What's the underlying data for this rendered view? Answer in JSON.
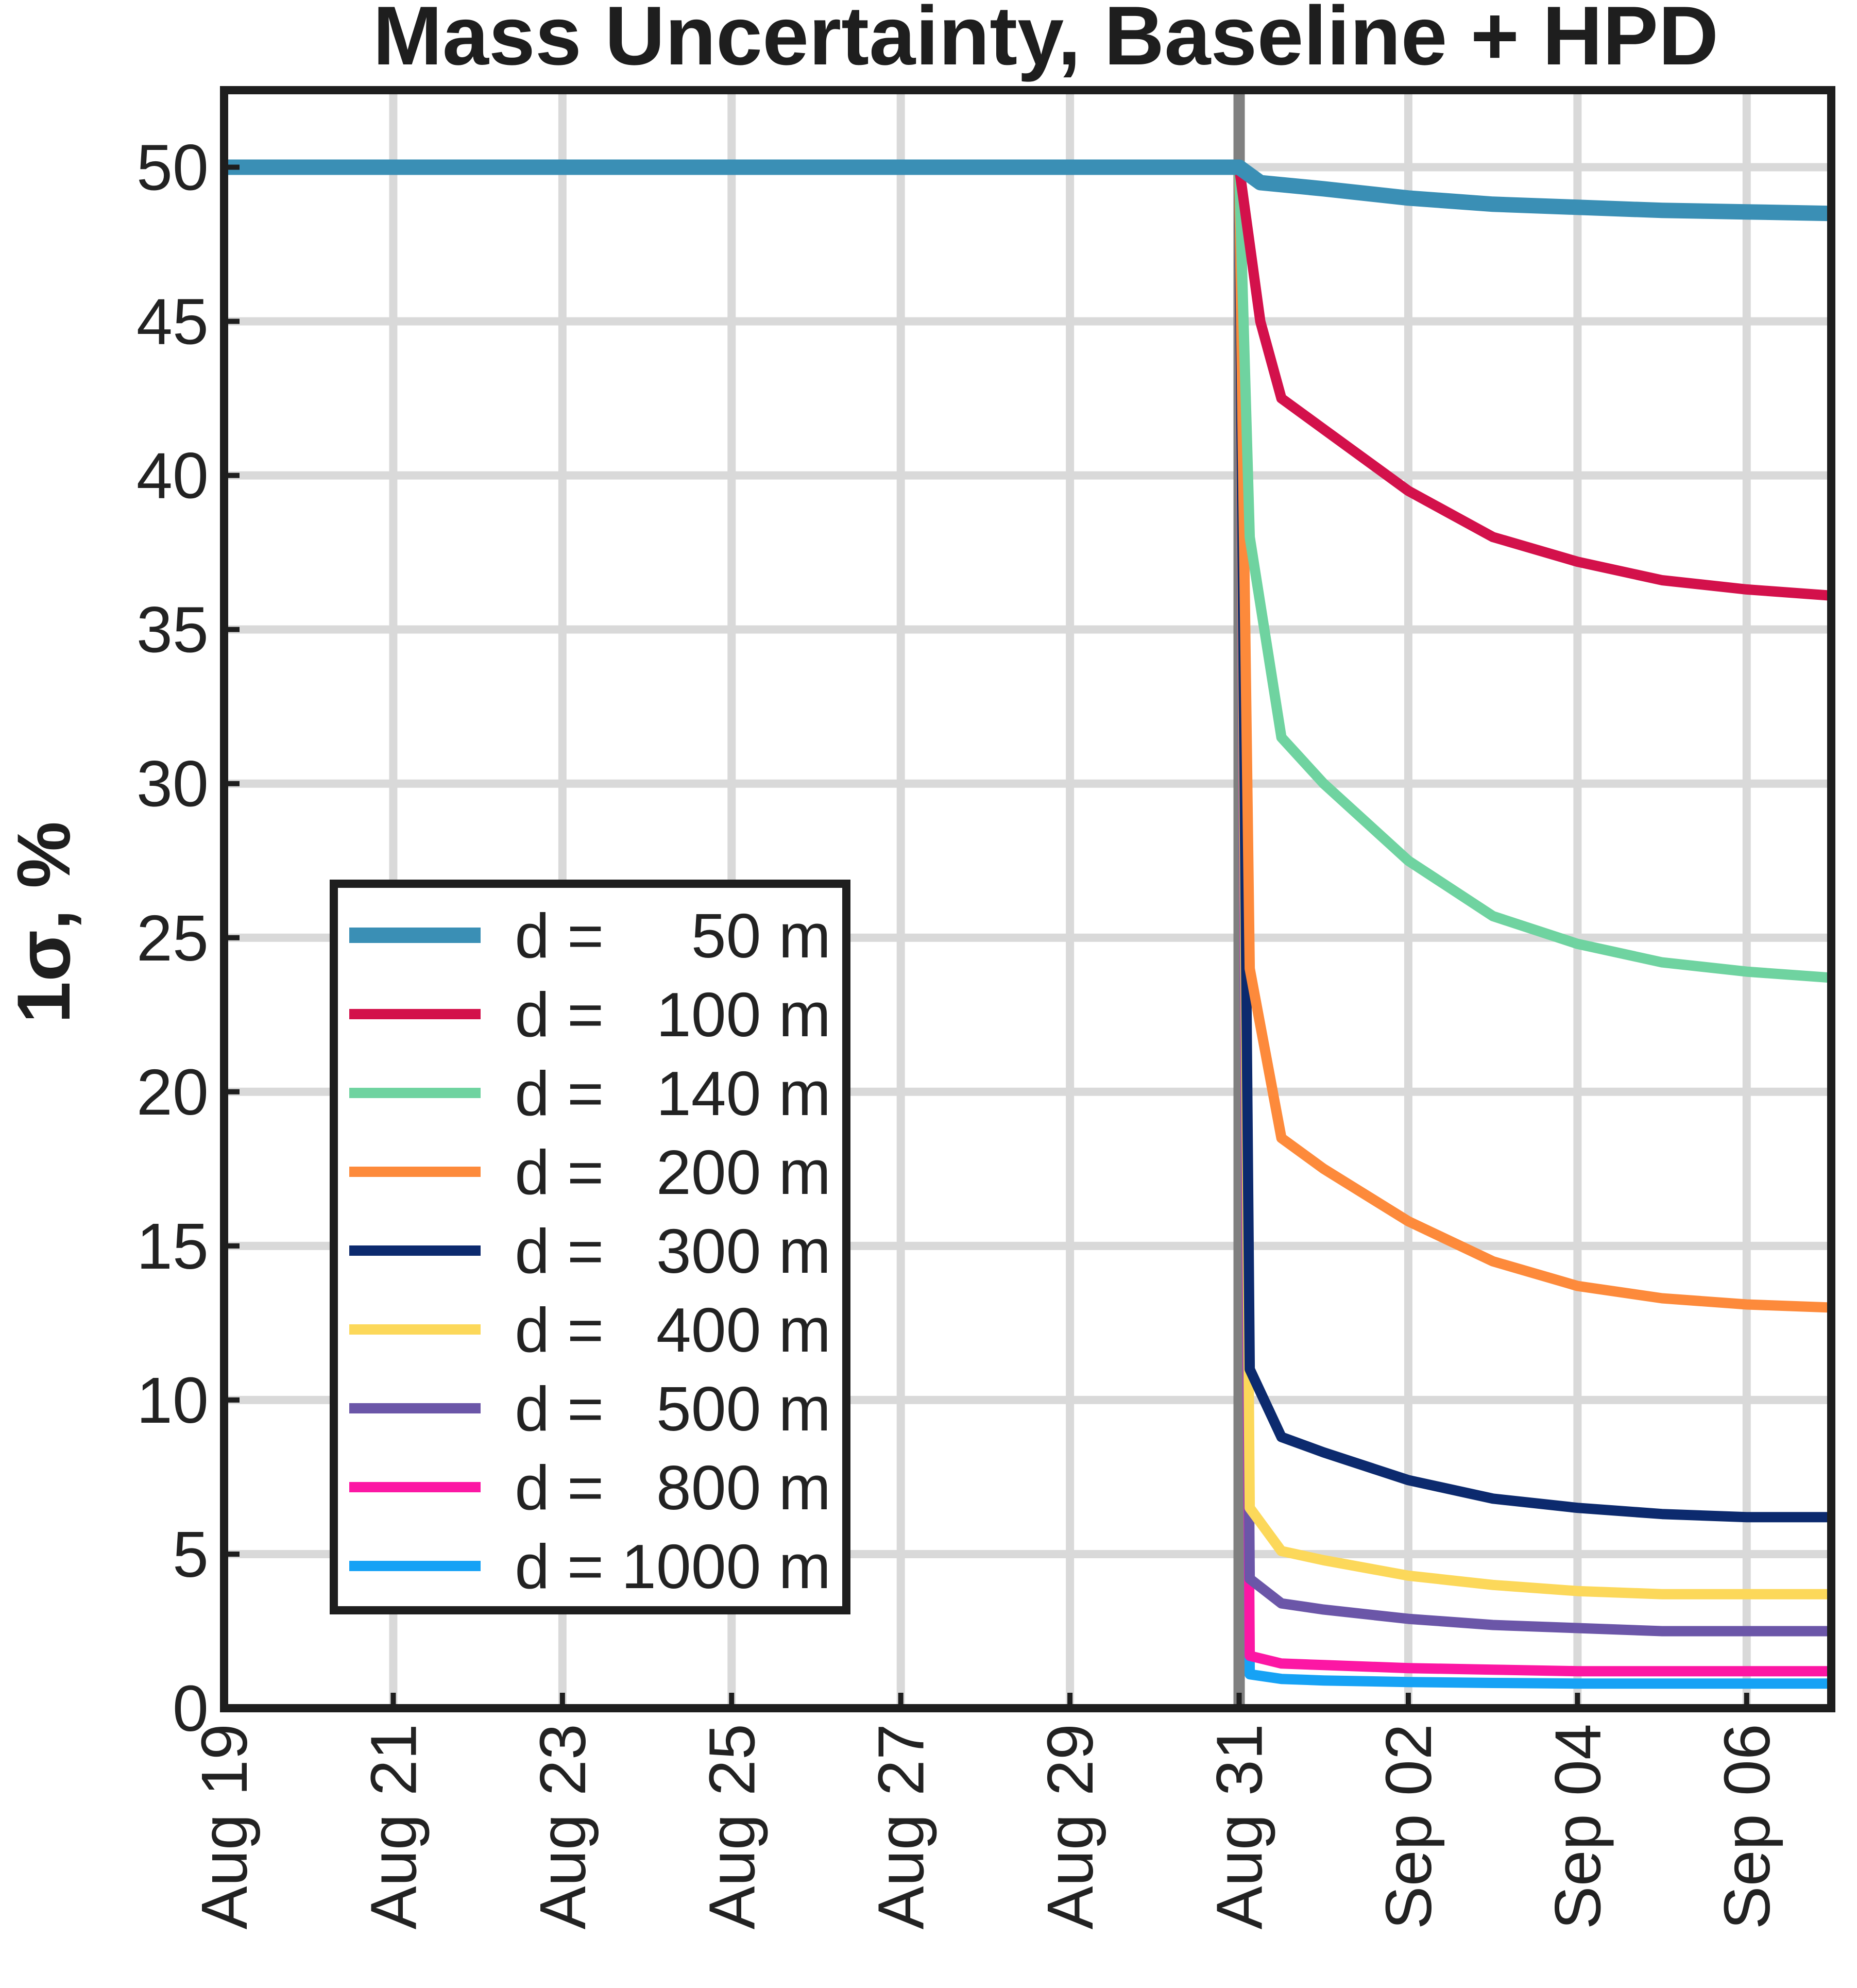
{
  "chart_data": {
    "type": "line",
    "title": "Mass Uncertainty, Baseline + HPD",
    "xlabel": "",
    "ylabel": "1σ,  %",
    "x_axis_kind": "date",
    "xlim": [
      "2023-08-19",
      "2023-09-07"
    ],
    "ylim": [
      0,
      52.5
    ],
    "x_ticks": [
      {
        "date": "2023-08-19",
        "label": "Aug 19"
      },
      {
        "date": "2023-08-21",
        "label": "Aug 21"
      },
      {
        "date": "2023-08-23",
        "label": "Aug 23"
      },
      {
        "date": "2023-08-25",
        "label": "Aug 25"
      },
      {
        "date": "2023-08-27",
        "label": "Aug 27"
      },
      {
        "date": "2023-08-29",
        "label": "Aug 29"
      },
      {
        "date": "2023-08-31",
        "label": "Aug 31"
      },
      {
        "date": "2023-09-02",
        "label": "Sep 02"
      },
      {
        "date": "2023-09-04",
        "label": "Sep 04"
      },
      {
        "date": "2023-09-06",
        "label": "Sep 06"
      }
    ],
    "y_ticks": [
      0,
      5,
      10,
      15,
      20,
      25,
      30,
      35,
      40,
      45,
      50
    ],
    "grid": true,
    "legend_position": "lower-left",
    "vertical_marker": {
      "date": "2023-08-31",
      "color": "#808080"
    },
    "series": [
      {
        "name": "d =     50 m",
        "color": "#3a8fb5",
        "points": [
          [
            "2023-08-19",
            50.0
          ],
          [
            "2023-08-31",
            50.0
          ],
          [
            "2023-08-31 06:00",
            49.5
          ],
          [
            "2023-09-01",
            49.3
          ],
          [
            "2023-09-02",
            49.0
          ],
          [
            "2023-09-03",
            48.8
          ],
          [
            "2023-09-04",
            48.7
          ],
          [
            "2023-09-05",
            48.6
          ],
          [
            "2023-09-06",
            48.55
          ],
          [
            "2023-09-07",
            48.5
          ]
        ]
      },
      {
        "name": "d =   100 m",
        "color": "#d3114b",
        "points": [
          [
            "2023-08-19",
            50.0
          ],
          [
            "2023-08-31",
            50.0
          ],
          [
            "2023-08-31 06:00",
            45.0
          ],
          [
            "2023-08-31 12:00",
            42.5
          ],
          [
            "2023-09-01",
            41.5
          ],
          [
            "2023-09-02",
            39.5
          ],
          [
            "2023-09-03",
            38.0
          ],
          [
            "2023-09-04",
            37.2
          ],
          [
            "2023-09-05",
            36.6
          ],
          [
            "2023-09-06",
            36.3
          ],
          [
            "2023-09-07",
            36.1
          ]
        ]
      },
      {
        "name": "d =   140 m",
        "color": "#6fd3a0",
        "points": [
          [
            "2023-08-19",
            50.0
          ],
          [
            "2023-08-31",
            50.0
          ],
          [
            "2023-08-31 03:00",
            38.0
          ],
          [
            "2023-08-31 12:00",
            31.5
          ],
          [
            "2023-09-01",
            30.0
          ],
          [
            "2023-09-02",
            27.5
          ],
          [
            "2023-09-03",
            25.7
          ],
          [
            "2023-09-04",
            24.8
          ],
          [
            "2023-09-05",
            24.2
          ],
          [
            "2023-09-06",
            23.9
          ],
          [
            "2023-09-07",
            23.7
          ]
        ]
      },
      {
        "name": "d =   200 m",
        "color": "#fd8a3b",
        "points": [
          [
            "2023-08-19",
            50.0
          ],
          [
            "2023-08-31",
            50.0
          ],
          [
            "2023-08-31 03:00",
            24.0
          ],
          [
            "2023-08-31 12:00",
            18.5
          ],
          [
            "2023-09-01",
            17.5
          ],
          [
            "2023-09-02",
            15.8
          ],
          [
            "2023-09-03",
            14.5
          ],
          [
            "2023-09-04",
            13.7
          ],
          [
            "2023-09-05",
            13.3
          ],
          [
            "2023-09-06",
            13.1
          ],
          [
            "2023-09-07",
            13.0
          ]
        ]
      },
      {
        "name": "d =   300 m",
        "color": "#0c2a6e",
        "points": [
          [
            "2023-08-19",
            50.0
          ],
          [
            "2023-08-31",
            50.0
          ],
          [
            "2023-08-31 03:00",
            11.0
          ],
          [
            "2023-08-31 12:00",
            8.8
          ],
          [
            "2023-09-01",
            8.3
          ],
          [
            "2023-09-02",
            7.4
          ],
          [
            "2023-09-03",
            6.8
          ],
          [
            "2023-09-04",
            6.5
          ],
          [
            "2023-09-05",
            6.3
          ],
          [
            "2023-09-06",
            6.2
          ],
          [
            "2023-09-07",
            6.2
          ]
        ]
      },
      {
        "name": "d =   400 m",
        "color": "#fcd85a",
        "points": [
          [
            "2023-08-19",
            50.0
          ],
          [
            "2023-08-31",
            50.0
          ],
          [
            "2023-08-31 03:00",
            6.5
          ],
          [
            "2023-08-31 12:00",
            5.1
          ],
          [
            "2023-09-01",
            4.8
          ],
          [
            "2023-09-02",
            4.3
          ],
          [
            "2023-09-03",
            4.0
          ],
          [
            "2023-09-04",
            3.8
          ],
          [
            "2023-09-05",
            3.7
          ],
          [
            "2023-09-06",
            3.7
          ],
          [
            "2023-09-07",
            3.7
          ]
        ]
      },
      {
        "name": "d =   500 m",
        "color": "#6b56a8",
        "points": [
          [
            "2023-08-19",
            50.0
          ],
          [
            "2023-08-31",
            50.0
          ],
          [
            "2023-08-31 03:00",
            4.2
          ],
          [
            "2023-08-31 12:00",
            3.4
          ],
          [
            "2023-09-01",
            3.2
          ],
          [
            "2023-09-02",
            2.9
          ],
          [
            "2023-09-03",
            2.7
          ],
          [
            "2023-09-04",
            2.6
          ],
          [
            "2023-09-05",
            2.5
          ],
          [
            "2023-09-06",
            2.5
          ],
          [
            "2023-09-07",
            2.5
          ]
        ]
      },
      {
        "name": "d =   800 m",
        "color": "#fc17a4",
        "points": [
          [
            "2023-08-19",
            50.0
          ],
          [
            "2023-08-31",
            50.0
          ],
          [
            "2023-08-31 03:00",
            1.7
          ],
          [
            "2023-08-31 12:00",
            1.45
          ],
          [
            "2023-09-01",
            1.4
          ],
          [
            "2023-09-02",
            1.3
          ],
          [
            "2023-09-03",
            1.25
          ],
          [
            "2023-09-04",
            1.2
          ],
          [
            "2023-09-05",
            1.2
          ],
          [
            "2023-09-06",
            1.2
          ],
          [
            "2023-09-07",
            1.2
          ]
        ]
      },
      {
        "name": "d = 1000 m",
        "color": "#16a2f5",
        "points": [
          [
            "2023-08-19",
            50.0
          ],
          [
            "2023-08-31",
            50.0
          ],
          [
            "2023-08-31 03:00",
            1.1
          ],
          [
            "2023-08-31 12:00",
            0.95
          ],
          [
            "2023-09-01",
            0.9
          ],
          [
            "2023-09-02",
            0.85
          ],
          [
            "2023-09-03",
            0.82
          ],
          [
            "2023-09-04",
            0.8
          ],
          [
            "2023-09-05",
            0.8
          ],
          [
            "2023-09-06",
            0.8
          ],
          [
            "2023-09-07",
            0.8
          ]
        ]
      }
    ]
  }
}
